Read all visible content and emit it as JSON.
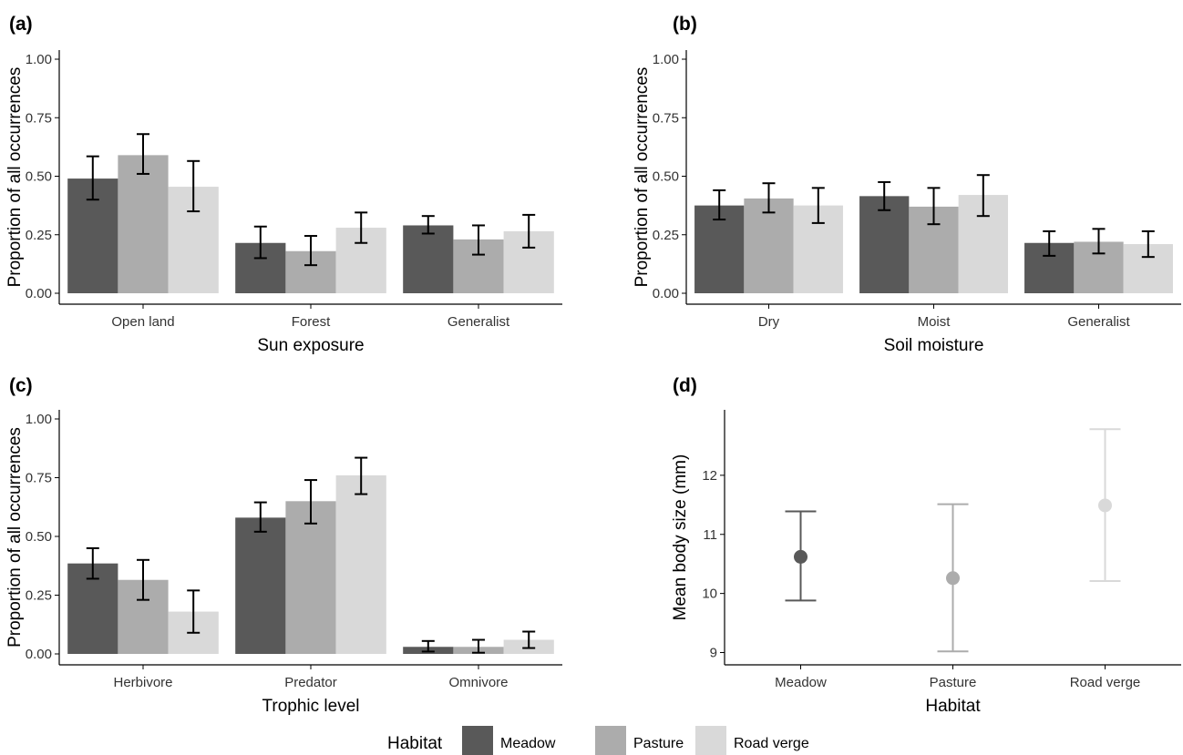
{
  "colors": {
    "Meadow": "#595959",
    "Pasture": "#acacac",
    "Road verge": "#d9d9d9",
    "axis": "#000000",
    "errorbar": "#000000"
  },
  "legend": {
    "title": "Habitat",
    "items": [
      "Meadow",
      "Pasture",
      "Road verge"
    ],
    "placement": "bottom"
  },
  "chart_data": [
    {
      "panel": "(a)",
      "type": "bar",
      "xlabel": "Sun exposure",
      "ylabel": "Proportion of all occurrences",
      "ylim": [
        0,
        1
      ],
      "yticks": [
        "0.00",
        "0.25",
        "0.50",
        "0.75",
        "1.00"
      ],
      "categories": [
        "Open land",
        "Forest",
        "Generalist"
      ],
      "series": [
        {
          "name": "Meadow",
          "values": [
            0.49,
            0.215,
            0.29
          ],
          "lower": [
            0.4,
            0.15,
            0.255
          ],
          "upper": [
            0.585,
            0.285,
            0.33
          ]
        },
        {
          "name": "Pasture",
          "values": [
            0.59,
            0.18,
            0.23
          ],
          "lower": [
            0.51,
            0.12,
            0.165
          ],
          "upper": [
            0.68,
            0.245,
            0.29
          ]
        },
        {
          "name": "Road verge",
          "values": [
            0.455,
            0.28,
            0.265
          ],
          "lower": [
            0.35,
            0.215,
            0.195
          ],
          "upper": [
            0.565,
            0.345,
            0.335
          ]
        }
      ]
    },
    {
      "panel": "(b)",
      "type": "bar",
      "xlabel": "Soil moisture",
      "ylabel": "Proportion of all occurrences",
      "ylim": [
        0,
        1
      ],
      "yticks": [
        "0.00",
        "0.25",
        "0.50",
        "0.75",
        "1.00"
      ],
      "categories": [
        "Dry",
        "Moist",
        "Generalist"
      ],
      "series": [
        {
          "name": "Meadow",
          "values": [
            0.375,
            0.415,
            0.215
          ],
          "lower": [
            0.315,
            0.355,
            0.16
          ],
          "upper": [
            0.44,
            0.475,
            0.265
          ]
        },
        {
          "name": "Pasture",
          "values": [
            0.405,
            0.37,
            0.22
          ],
          "lower": [
            0.345,
            0.295,
            0.17
          ],
          "upper": [
            0.47,
            0.45,
            0.275
          ]
        },
        {
          "name": "Road verge",
          "values": [
            0.375,
            0.42,
            0.21
          ],
          "lower": [
            0.3,
            0.33,
            0.155
          ],
          "upper": [
            0.45,
            0.505,
            0.265
          ]
        }
      ]
    },
    {
      "panel": "(c)",
      "type": "bar",
      "xlabel": "Trophic level",
      "ylabel": "Proportion of all occurrences",
      "ylim": [
        0,
        1
      ],
      "yticks": [
        "0.00",
        "0.25",
        "0.50",
        "0.75",
        "1.00"
      ],
      "categories": [
        "Herbivore",
        "Predator",
        "Omnivore"
      ],
      "series": [
        {
          "name": "Meadow",
          "values": [
            0.385,
            0.58,
            0.03
          ],
          "lower": [
            0.32,
            0.52,
            0.01
          ],
          "upper": [
            0.45,
            0.645,
            0.055
          ]
        },
        {
          "name": "Pasture",
          "values": [
            0.315,
            0.65,
            0.03
          ],
          "lower": [
            0.23,
            0.555,
            0.005
          ],
          "upper": [
            0.4,
            0.74,
            0.06
          ]
        },
        {
          "name": "Road verge",
          "values": [
            0.18,
            0.76,
            0.06
          ],
          "lower": [
            0.09,
            0.68,
            0.025
          ],
          "upper": [
            0.27,
            0.835,
            0.095
          ]
        }
      ]
    },
    {
      "panel": "(d)",
      "type": "scatter",
      "xlabel": "Habitat",
      "ylabel": "Mean body size (mm)",
      "ylim": [
        8.9,
        13.0
      ],
      "yticks": [
        "9",
        "10",
        "11",
        "12"
      ],
      "categories": [
        "Meadow",
        "Pasture",
        "Road verge"
      ],
      "series": [
        {
          "name": "Meadow",
          "values": [
            10.62
          ],
          "lower": [
            9.88
          ],
          "upper": [
            11.39
          ]
        },
        {
          "name": "Pasture",
          "values": [
            10.26
          ],
          "lower": [
            9.02
          ],
          "upper": [
            11.51
          ]
        },
        {
          "name": "Road verge",
          "values": [
            11.49
          ],
          "lower": [
            10.21
          ],
          "upper": [
            12.78
          ]
        }
      ]
    }
  ]
}
